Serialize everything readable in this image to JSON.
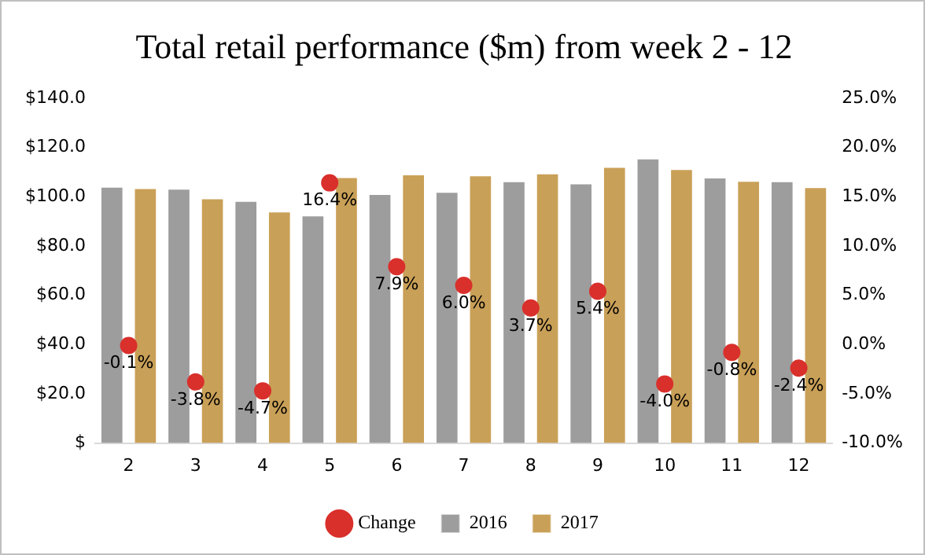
{
  "chart_data": {
    "type": "bar",
    "title": "Total retail performance ($m) from week 2 - 12",
    "categories": [
      "2",
      "3",
      "4",
      "5",
      "6",
      "7",
      "8",
      "9",
      "10",
      "11",
      "12"
    ],
    "series": [
      {
        "name": "2016",
        "color": "#9d9d9d",
        "values": [
          104.3,
          103.5,
          98.5,
          92.6,
          101.3,
          102.2,
          106.5,
          105.6,
          115.8,
          108.0,
          106.5
        ]
      },
      {
        "name": "2017",
        "color": "#c9a057",
        "values": [
          103.7,
          99.6,
          94.2,
          108.2,
          109.3,
          108.9,
          109.7,
          112.3,
          111.5,
          106.7,
          104.1
        ]
      },
      {
        "name": "Change",
        "type": "scatter",
        "axis": "y2",
        "color": "#d9302c",
        "values": [
          -0.1,
          -3.8,
          -4.7,
          16.4,
          7.9,
          6.0,
          3.7,
          5.4,
          -4.0,
          -0.8,
          -2.4
        ],
        "value_labels": [
          "-0.1%",
          "-3.8%",
          "-4.7%",
          "16.4%",
          "7.9%",
          "6.0%",
          "3.7%",
          "5.4%",
          "-4.0%",
          "-0.8%",
          "-2.4%"
        ]
      }
    ],
    "ylim": [
      0,
      140
    ],
    "yticks": [
      {
        "value": 0,
        "label": "$"
      },
      {
        "value": 20,
        "label": "$20.0"
      },
      {
        "value": 40,
        "label": "$40.0"
      },
      {
        "value": 60,
        "label": "$60.0"
      },
      {
        "value": 80,
        "label": "$80.0"
      },
      {
        "value": 100,
        "label": "$100.0"
      },
      {
        "value": 120,
        "label": "$120.0"
      },
      {
        "value": 140,
        "label": "$140.0"
      }
    ],
    "y2lim": [
      -10,
      25
    ],
    "y2ticks": [
      {
        "value": -10,
        "label": "-10.0%"
      },
      {
        "value": -5,
        "label": "-5.0%"
      },
      {
        "value": 0,
        "label": "0.0%"
      },
      {
        "value": 5,
        "label": "5.0%"
      },
      {
        "value": 10,
        "label": "10.0%"
      },
      {
        "value": 15,
        "label": "15.0%"
      },
      {
        "value": 20,
        "label": "20.0%"
      },
      {
        "value": 25,
        "label": "25.0%"
      }
    ],
    "grid": false,
    "legend": "bottom",
    "marker": "circle"
  }
}
